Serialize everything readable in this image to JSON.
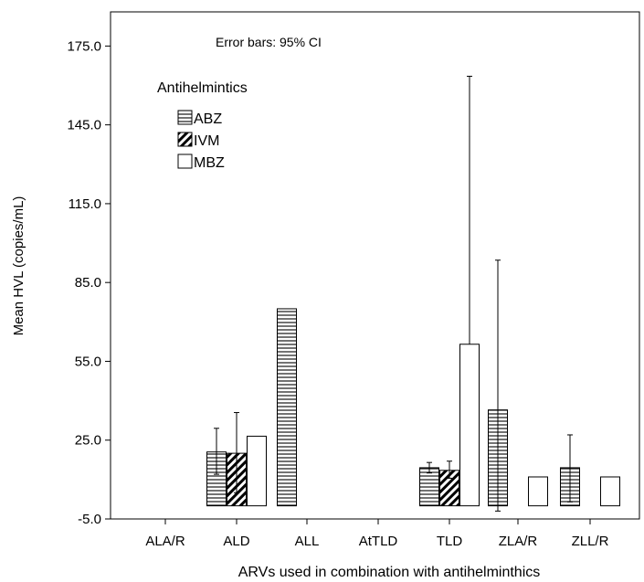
{
  "chart_data": {
    "type": "bar",
    "note": "Error bars: 95% CI",
    "xlabel": "ARVs used in combination with antihelminthics",
    "ylabel": "Mean HVL (copies/mL)",
    "ylim": [
      -5.0,
      188.0
    ],
    "yticks": [
      "175.0",
      "145.0",
      "115.0",
      "85.0",
      "55.0",
      "25.0",
      "-5.0"
    ],
    "ytick_values": [
      175,
      145,
      115,
      85,
      55,
      25,
      -5
    ],
    "categories": [
      "ALA/R",
      "ALD",
      "ALL",
      "AtTLD",
      "TLD",
      "ZLA/R",
      "ZLL/R"
    ],
    "legend": {
      "title": "Antihelmintics",
      "position": "top-left"
    },
    "series": [
      {
        "name": "ABZ",
        "pattern": "horizontal-stripes",
        "values": [
          null,
          20.5,
          75.0,
          null,
          14.5,
          36.5,
          14.5
        ],
        "ci_low": [
          null,
          12.0,
          null,
          null,
          12.5,
          -2.0,
          1.5
        ],
        "ci_high": [
          null,
          29.5,
          null,
          null,
          16.5,
          93.5,
          27.0
        ]
      },
      {
        "name": "IVM",
        "pattern": "diagonal-hatch",
        "values": [
          null,
          20.0,
          null,
          null,
          13.5,
          null,
          null
        ],
        "ci_low": [
          null,
          5.0,
          null,
          null,
          10.5,
          null,
          null
        ],
        "ci_high": [
          null,
          35.5,
          null,
          null,
          17.0,
          null,
          null
        ]
      },
      {
        "name": "MBZ",
        "pattern": "empty",
        "values": [
          null,
          26.5,
          null,
          null,
          61.5,
          11.0,
          11.0
        ],
        "ci_low": [
          null,
          null,
          null,
          null,
          null,
          null,
          null
        ],
        "ci_high": [
          null,
          null,
          null,
          null,
          163.5,
          null,
          null
        ]
      }
    ],
    "grid": false
  }
}
